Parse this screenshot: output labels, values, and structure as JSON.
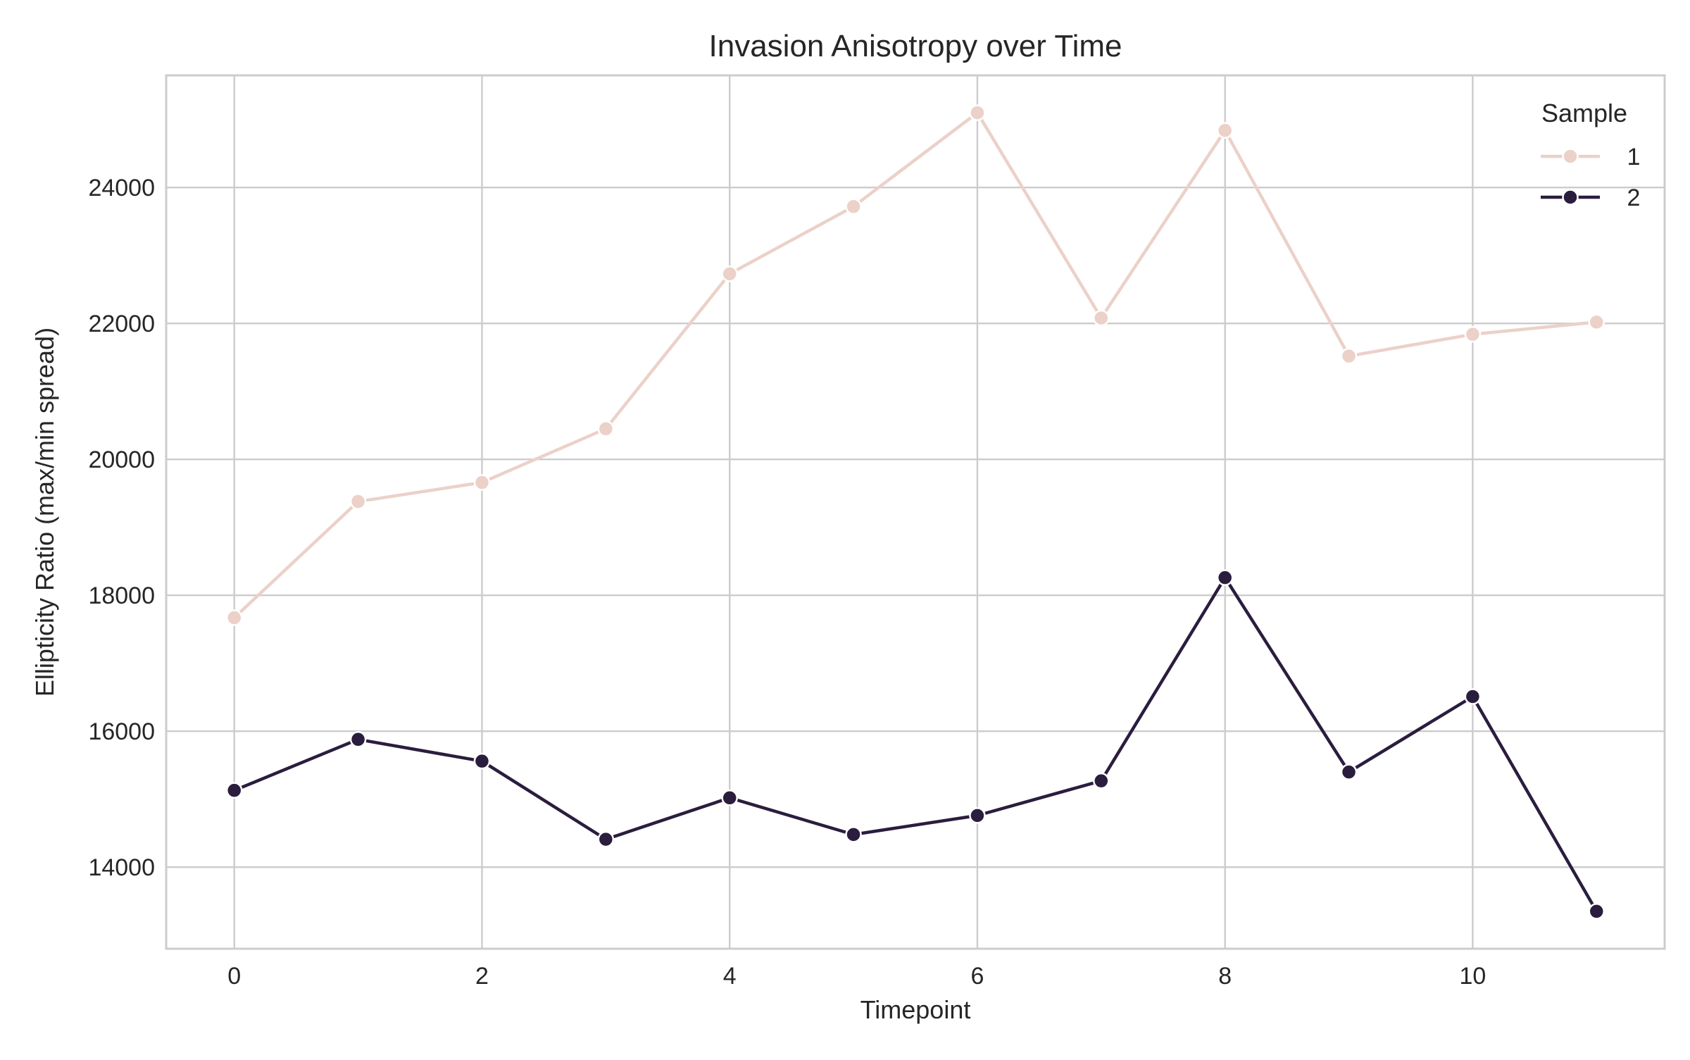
{
  "chart_data": {
    "type": "line",
    "title": "Invasion Anisotropy over Time",
    "xlabel": "Timepoint",
    "ylabel": "Ellipticity Ratio (max/min spread)",
    "x": [
      0,
      1,
      2,
      3,
      4,
      5,
      6,
      7,
      8,
      9,
      10,
      11
    ],
    "xlim": [
      -0.55,
      11.55
    ],
    "ylim": [
      12800,
      25650
    ],
    "xticks": [
      0,
      2,
      4,
      6,
      8,
      10
    ],
    "yticks": [
      14000,
      16000,
      18000,
      20000,
      22000,
      24000
    ],
    "grid": true,
    "legend": {
      "title": "Sample",
      "placement": "top-right"
    },
    "series": [
      {
        "name": "1",
        "color": "#ebd1c8",
        "values": [
          17670,
          19380,
          19660,
          20450,
          22730,
          23720,
          25100,
          22080,
          24840,
          21520,
          21840,
          22020
        ]
      },
      {
        "name": "2",
        "color": "#2a1d3e",
        "values": [
          15130,
          15880,
          15560,
          14410,
          15020,
          14480,
          14760,
          15270,
          18260,
          15400,
          16510,
          13350
        ]
      }
    ]
  }
}
